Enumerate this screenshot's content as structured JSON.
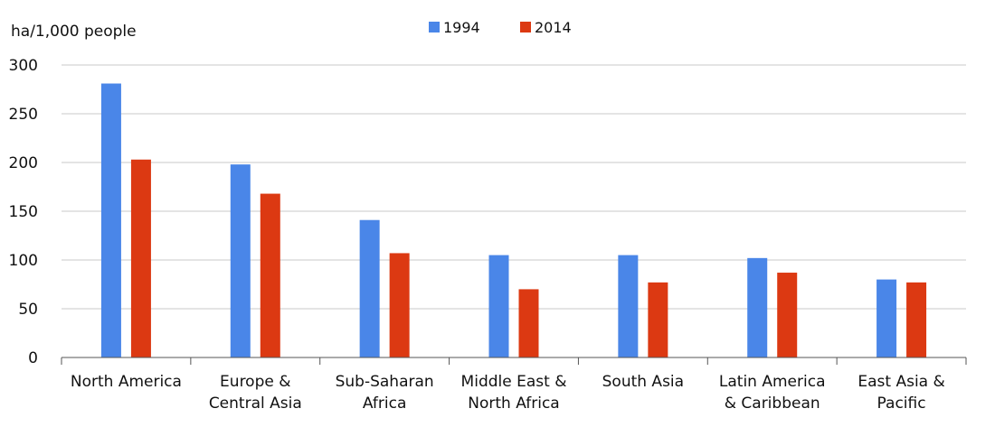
{
  "chart_data": {
    "type": "bar",
    "ylabel": "ha/1,000 people",
    "ylim": [
      0,
      300
    ],
    "yticks": [
      0,
      50,
      100,
      150,
      200,
      250,
      300
    ],
    "grid": true,
    "legend_position": "top-center",
    "categories": [
      [
        "North America"
      ],
      [
        "Europe &",
        "Central Asia"
      ],
      [
        "Sub-Saharan",
        "Africa"
      ],
      [
        "Middle East &",
        "North Africa"
      ],
      [
        "South Asia"
      ],
      [
        "Latin America",
        "& Caribbean"
      ],
      [
        "East Asia &",
        "Pacific"
      ]
    ],
    "series": [
      {
        "name": "1994",
        "color": "#4a86e8",
        "values": [
          281,
          198,
          141,
          105,
          105,
          102,
          80
        ]
      },
      {
        "name": "2014",
        "color": "#dc3912",
        "values": [
          203,
          168,
          107,
          70,
          77,
          87,
          77
        ]
      }
    ]
  }
}
